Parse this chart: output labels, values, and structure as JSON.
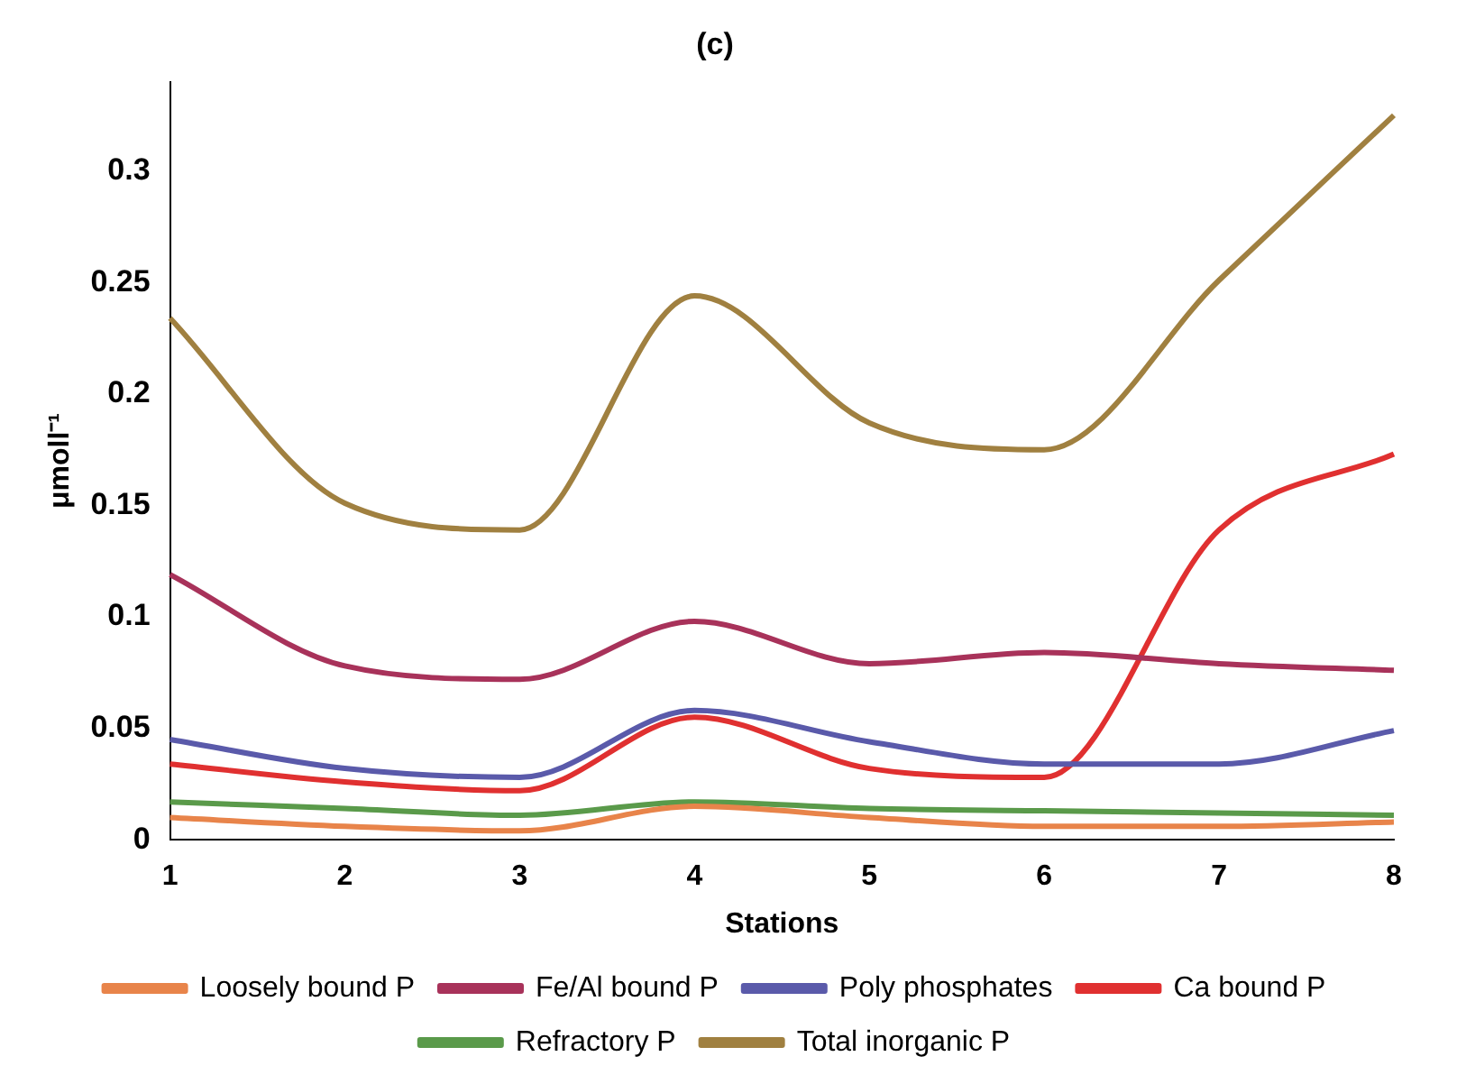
{
  "chart_data": {
    "type": "line",
    "title": "(c)",
    "xlabel": "Stations",
    "ylabel": "μmoll⁻¹",
    "categories": [
      "1",
      "2",
      "3",
      "4",
      "5",
      "6",
      "7",
      "8"
    ],
    "ylim": [
      0,
      0.34
    ],
    "yticks": [
      0,
      0.05,
      0.1,
      0.15,
      0.2,
      0.25,
      0.3
    ],
    "grid": false,
    "legend": "bottom",
    "marker": "none",
    "line_style": "solid",
    "series": [
      {
        "name": "Loosely bound P",
        "color": "#e8844a",
        "values": [
          0.01,
          0.006,
          0.004,
          0.015,
          0.01,
          0.006,
          0.006,
          0.008
        ]
      },
      {
        "name": "Fe/Al bound P",
        "color": "#a8325a",
        "values": [
          0.119,
          0.078,
          0.072,
          0.098,
          0.079,
          0.084,
          0.079,
          0.076
        ]
      },
      {
        "name": "Poly phosphates",
        "color": "#5a5aaa",
        "values": [
          0.045,
          0.032,
          0.028,
          0.058,
          0.044,
          0.034,
          0.034,
          0.049
        ]
      },
      {
        "name": "Ca bound P",
        "color": "#e03030",
        "values": [
          0.034,
          0.026,
          0.022,
          0.055,
          0.032,
          0.028,
          0.139,
          0.173
        ]
      },
      {
        "name": "Refractory P",
        "color": "#5a9a4a",
        "values": [
          0.017,
          0.014,
          0.011,
          0.017,
          0.014,
          0.013,
          0.012,
          0.011
        ]
      },
      {
        "name": "Total inorganic P",
        "color": "#a08040",
        "values": [
          0.234,
          0.151,
          0.139,
          0.244,
          0.187,
          0.175,
          0.251,
          0.325
        ]
      }
    ]
  }
}
